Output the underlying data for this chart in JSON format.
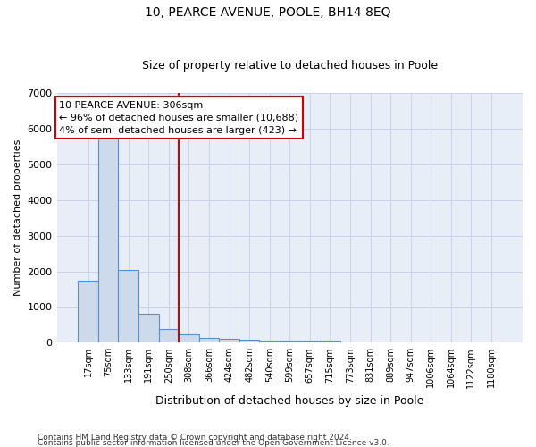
{
  "title": "10, PEARCE AVENUE, POOLE, BH14 8EQ",
  "subtitle": "Size of property relative to detached houses in Poole",
  "xlabel": "Distribution of detached houses by size in Poole",
  "ylabel": "Number of detached properties",
  "footer_line1": "Contains HM Land Registry data © Crown copyright and database right 2024.",
  "footer_line2": "Contains public sector information licensed under the Open Government Licence v3.0.",
  "annotation_line1": "10 PEARCE AVENUE: 306sqm",
  "annotation_line2": "← 96% of detached houses are smaller (10,688)",
  "annotation_line3": "4% of semi-detached houses are larger (423) →",
  "bar_color": "#cddaeb",
  "bar_edge_color": "#5b8fc9",
  "vline_color": "#cc0000",
  "annotation_box_edge_color": "#cc0000",
  "grid_color": "#c8d4e6",
  "bg_color": "#e8eef8",
  "categories": [
    "17sqm",
    "75sqm",
    "133sqm",
    "191sqm",
    "250sqm",
    "308sqm",
    "366sqm",
    "424sqm",
    "482sqm",
    "540sqm",
    "599sqm",
    "657sqm",
    "715sqm",
    "773sqm",
    "831sqm",
    "889sqm",
    "947sqm",
    "1006sqm",
    "1064sqm",
    "1122sqm",
    "1180sqm"
  ],
  "values": [
    1750,
    5750,
    2050,
    800,
    380,
    230,
    130,
    100,
    80,
    55,
    50,
    50,
    50,
    0,
    0,
    0,
    0,
    0,
    0,
    0,
    0
  ],
  "ylim": [
    0,
    7000
  ],
  "yticks": [
    0,
    1000,
    2000,
    3000,
    4000,
    5000,
    6000,
    7000
  ],
  "vline_x": 4.5
}
